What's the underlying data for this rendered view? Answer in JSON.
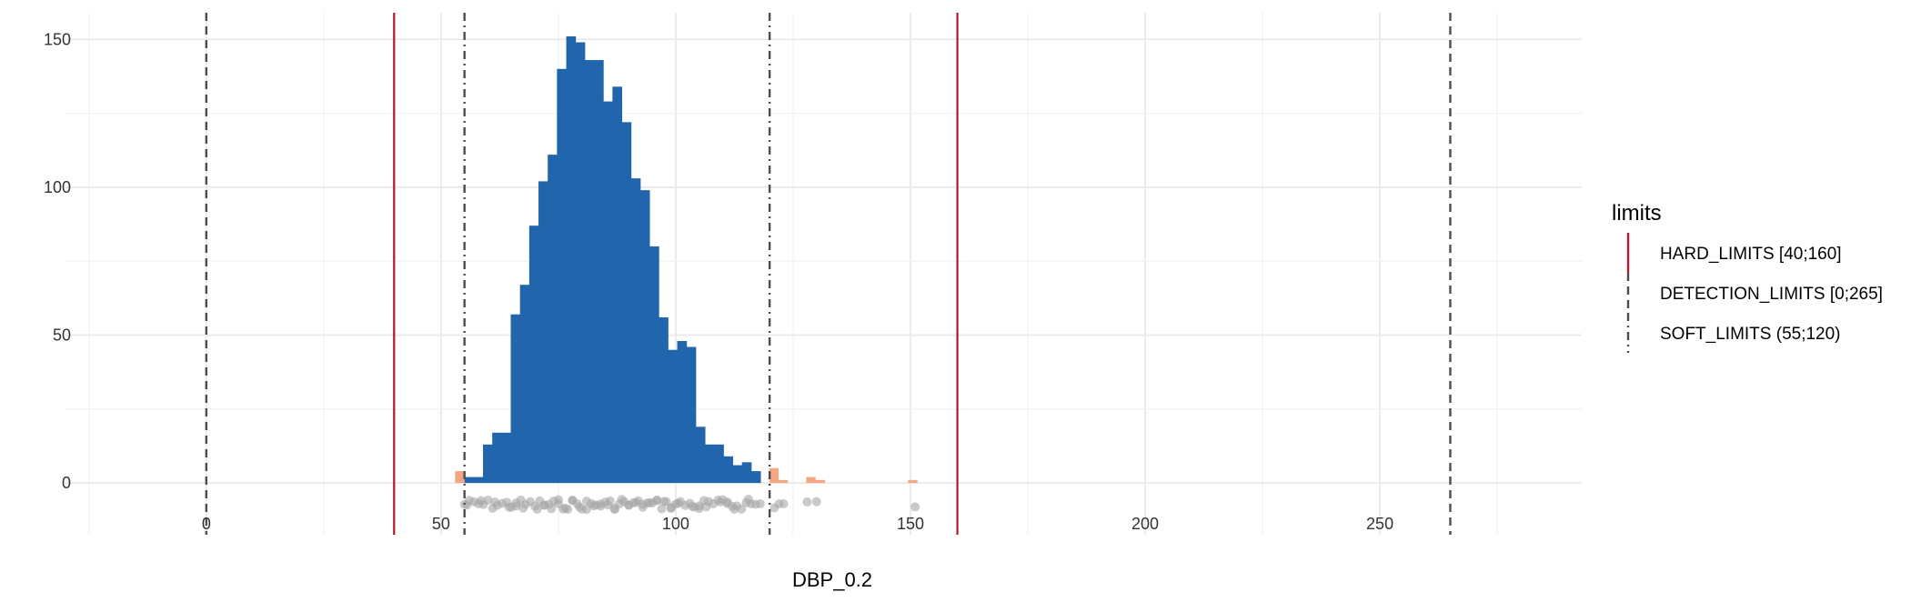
{
  "chart_data": {
    "type": "bar",
    "title": "",
    "xlabel": "DBP_0.2",
    "ylabel": "",
    "xlim": [
      -30,
      293
    ],
    "ylim": [
      -17.5,
      159
    ],
    "x_ticks": [
      0,
      50,
      100,
      150,
      200,
      250
    ],
    "x_tick_labels": [
      "0",
      "50",
      "100",
      "150",
      "200",
      "250"
    ],
    "y_ticks": [
      0,
      50,
      100,
      150
    ],
    "y_tick_labels": [
      "0",
      "50",
      "100",
      "150"
    ],
    "grid": true,
    "histogram": {
      "color": "#2166ac",
      "bin_start": 55,
      "binwidth": 1.97,
      "counts": [
        2,
        2,
        13,
        17,
        17,
        57,
        67,
        87,
        102,
        111,
        140,
        151,
        149,
        143,
        143,
        129,
        134,
        122,
        103,
        99,
        80,
        56,
        45,
        48,
        46,
        19,
        13,
        13,
        9,
        6,
        7,
        4
      ]
    },
    "outlier_bars": {
      "color": "#f4a582",
      "bars": [
        {
          "x0": 53.0,
          "x1": 55.0,
          "count": 4
        },
        {
          "x0": 120.0,
          "x1": 121.9,
          "count": 5
        },
        {
          "x0": 121.9,
          "x1": 123.9,
          "count": 1
        },
        {
          "x0": 127.8,
          "x1": 129.8,
          "count": 2
        },
        {
          "x0": 129.8,
          "x1": 131.8,
          "count": 1
        },
        {
          "x0": 149.5,
          "x1": 151.5,
          "count": 1
        }
      ]
    },
    "jitter_points": {
      "color": "#a6a6a6",
      "x": [
        55,
        55.5,
        56,
        57,
        58,
        59,
        60,
        61,
        62,
        63,
        64,
        65,
        66,
        67,
        68,
        69,
        70,
        71,
        72,
        73,
        74,
        75,
        76,
        77,
        78,
        79,
        80,
        81,
        82,
        83,
        84,
        85,
        86,
        87,
        88,
        89,
        90,
        91,
        92,
        93,
        94,
        95,
        96,
        97,
        98,
        99,
        100,
        101,
        102,
        103,
        104,
        105,
        106,
        107,
        108,
        109,
        110,
        111,
        112,
        113,
        114,
        115,
        116,
        117,
        118,
        121,
        122,
        123,
        128,
        130,
        151,
        58.5,
        61.5,
        64.5,
        67.5,
        70.5,
        73.5,
        76.5,
        79.5,
        82.5,
        85.5,
        88.5,
        91.5,
        94.5,
        97.5,
        100.5,
        103.5,
        106.5,
        109.5,
        112.5,
        115.5,
        66,
        72,
        75,
        78,
        81,
        84,
        87,
        90,
        93,
        96,
        99,
        105,
        111
      ]
    },
    "reference_lines": [
      {
        "group": "HARD_LIMITS [40;160]",
        "x": 40,
        "style": "solid",
        "color": "#b2182b"
      },
      {
        "group": "HARD_LIMITS [40;160]",
        "x": 160,
        "style": "solid",
        "color": "#b2182b"
      },
      {
        "group": "DETECTION_LIMITS [0;265]",
        "x": 0,
        "style": "dashed",
        "color": "#4d4d4d"
      },
      {
        "group": "DETECTION_LIMITS [0;265]",
        "x": 265,
        "style": "dashed",
        "color": "#4d4d4d"
      },
      {
        "group": "SOFT_LIMITS (55;120)",
        "x": 55,
        "style": "dotdash",
        "color": "#4d4d4d"
      },
      {
        "group": "SOFT_LIMITS (55;120)",
        "x": 120,
        "style": "dotdash",
        "color": "#4d4d4d"
      }
    ],
    "legend": {
      "title": "limits",
      "placement": "right",
      "entries": [
        {
          "label": "HARD_LIMITS [40;160]",
          "style": "solid",
          "color": "#b2182b"
        },
        {
          "label": "DETECTION_LIMITS [0;265]",
          "style": "dashed",
          "color": "#4d4d4d"
        },
        {
          "label": "SOFT_LIMITS (55;120)",
          "style": "dotdash",
          "color": "#4d4d4d"
        }
      ]
    }
  }
}
